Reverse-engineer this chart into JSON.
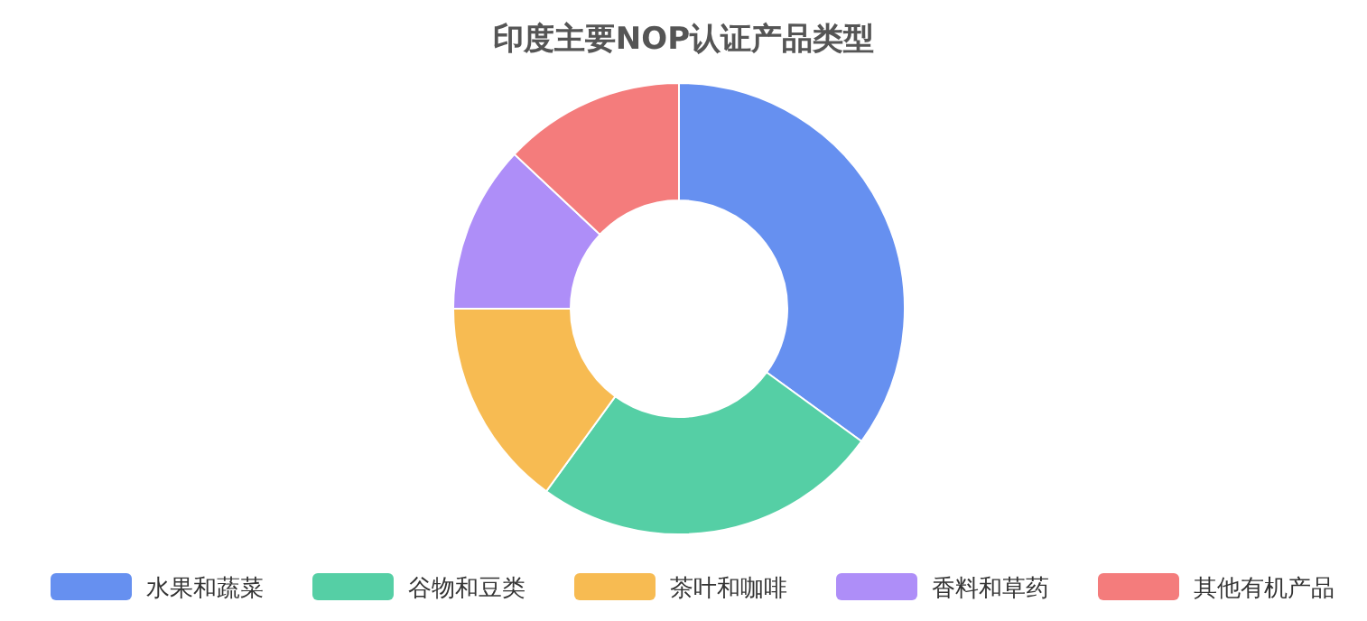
{
  "chart_data": {
    "type": "donut",
    "title": "印度主要NOP认证产品类型",
    "categories": [
      "水果和蔬菜",
      "谷物和豆类",
      "茶叶和咖啡",
      "香料和草药",
      "其他有机产品"
    ],
    "values": [
      35,
      25,
      15,
      12,
      13
    ],
    "colors": [
      "#6690f0",
      "#55cfa5",
      "#f7bb52",
      "#ae8ef8",
      "#f47c7c"
    ],
    "legend": "bottom"
  }
}
